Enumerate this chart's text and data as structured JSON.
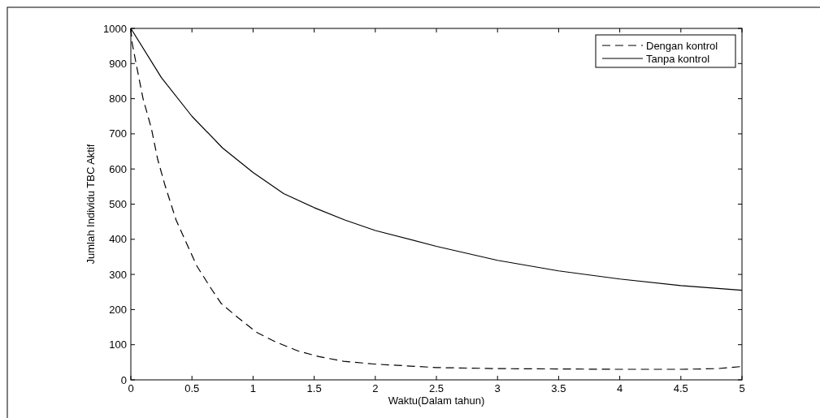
{
  "chart_data": {
    "type": "line",
    "xlabel": "Waktu(Dalam tahun)",
    "ylabel": "Jumlah Individu TBC Aktif",
    "xlim": [
      0,
      5
    ],
    "xticks": [
      0,
      0.5,
      1,
      1.5,
      2,
      2.5,
      3,
      3.5,
      4,
      4.5,
      5
    ],
    "ylim": [
      0,
      1000
    ],
    "yticks": [
      0,
      100,
      200,
      300,
      400,
      500,
      600,
      700,
      800,
      900,
      1000
    ],
    "grid": false,
    "legend": "top right",
    "series": [
      {
        "name": "Dengan kontrol",
        "color": "#000000",
        "line_style": "dashed",
        "x": [
          0,
          0.01,
          0.044,
          0.1,
          0.167,
          0.22,
          0.28,
          0.37,
          0.455,
          0.54,
          0.66,
          0.74,
          0.88,
          1.03,
          1.19,
          1.37,
          1.54,
          1.74,
          1.99,
          2.5,
          3,
          3.5,
          4,
          4.5,
          4.8,
          5
        ],
        "values": [
          1000,
          960,
          898,
          800,
          717,
          627,
          553,
          455,
          389,
          324,
          258,
          217,
          176,
          135,
          107,
          82,
          66,
          53,
          45,
          35,
          32,
          31,
          30,
          30,
          32,
          38
        ]
      },
      {
        "name": "Tanpa kontrol",
        "color": "#000000",
        "line_style": "solid",
        "x": [
          0,
          0.25,
          0.5,
          0.75,
          1,
          1.25,
          1.5,
          1.75,
          2,
          2.5,
          3,
          3.5,
          4,
          4.5,
          5
        ],
        "values": [
          1000,
          860,
          750,
          660,
          590,
          530,
          490,
          455,
          425,
          380,
          340,
          310,
          287,
          268,
          255
        ]
      }
    ]
  }
}
